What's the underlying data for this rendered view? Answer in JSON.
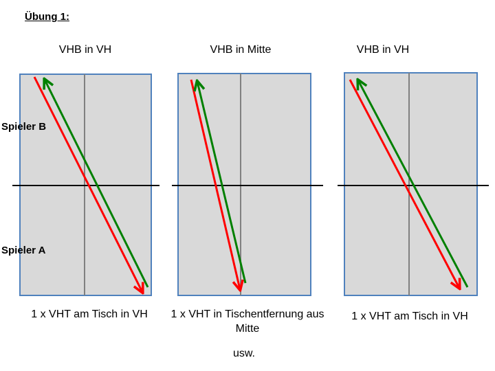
{
  "title": "Übung 1:",
  "players": {
    "top": "Spieler B",
    "bottom": "Spieler A"
  },
  "panels": [
    {
      "header": "VHB in VH",
      "caption": "1 x VHT am Tisch in VH"
    },
    {
      "header": "VHB in Mitte",
      "caption": "1 x VHT in Tischentfernung aus Mitte"
    },
    {
      "header": "VHB in VH",
      "caption": "1 x VHT am Tisch in VH"
    }
  ],
  "footer": "usw.",
  "colors": {
    "table_fill": "#d9d9d9",
    "table_border": "#4f81bd",
    "center_line": "#808080",
    "net": "#000000",
    "arrow_red": "#ff0000",
    "arrow_green": "#008000"
  }
}
